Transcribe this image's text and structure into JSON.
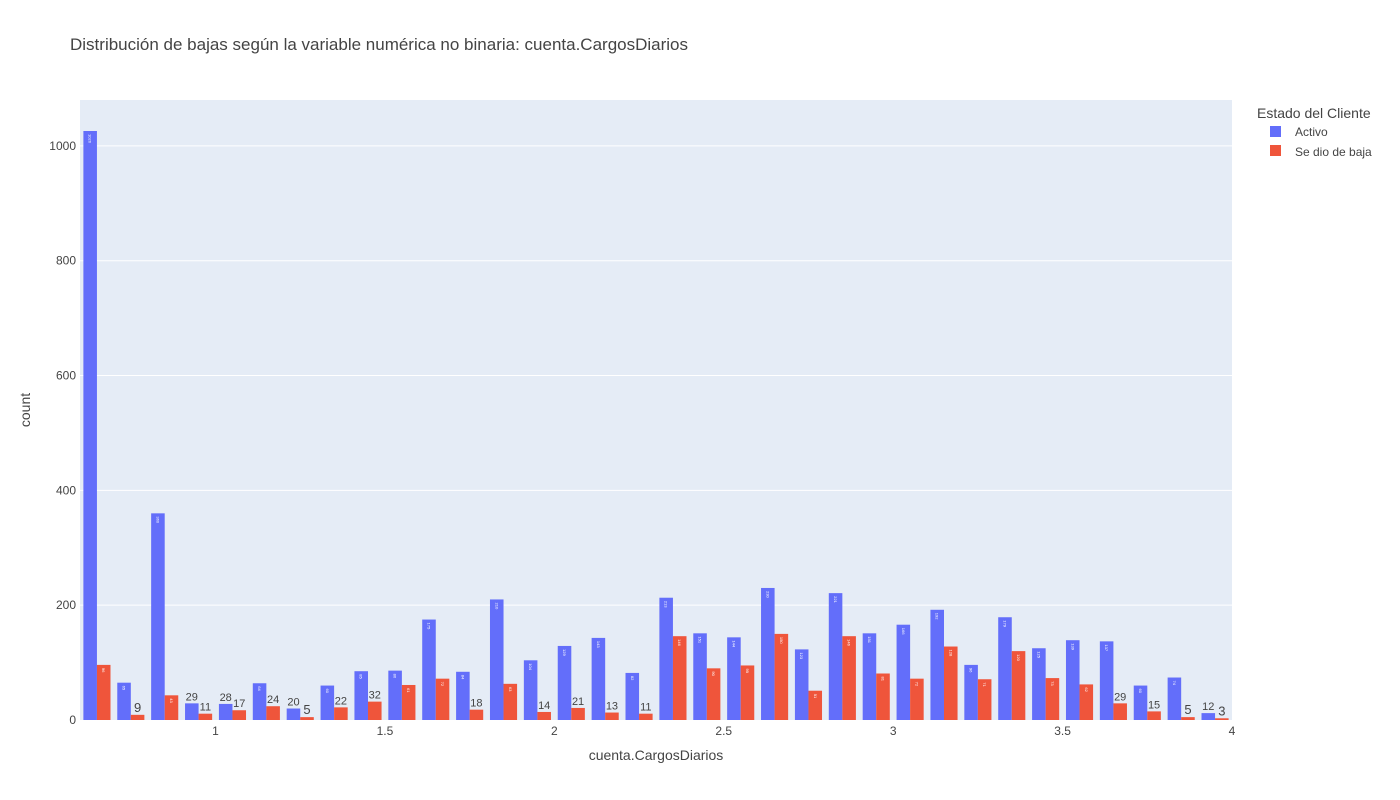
{
  "chart_data": {
    "type": "bar",
    "title": "Distribución de bajas según la variable numérica no binaria: cuenta.CargosDiarios",
    "xlabel": "cuenta.CargosDiarios",
    "ylabel": "count",
    "xlim": [
      0.6,
      4.0
    ],
    "ylim": [
      0,
      1080
    ],
    "bin_size": 0.1,
    "bin_start": 0.6,
    "x_ticks": [
      1,
      1.5,
      2,
      2.5,
      3,
      3.5,
      4
    ],
    "x_tick_labels": [
      "1",
      "1.5",
      "2",
      "2.5",
      "3",
      "3.5",
      "4"
    ],
    "y_ticks": [
      0,
      200,
      400,
      600,
      800,
      1000
    ],
    "y_tick_labels": [
      "0",
      "200",
      "400",
      "600",
      "800",
      "1000"
    ],
    "grid": true,
    "legend": {
      "title": "Estado del Cliente",
      "placement": "top-right"
    },
    "series": [
      {
        "name": "Activo",
        "color": "#636efa",
        "values": [
          1026,
          65,
          360,
          29,
          28,
          64,
          20,
          60,
          85,
          86,
          175,
          84,
          210,
          104,
          129,
          143,
          82,
          213,
          151,
          144,
          230,
          123,
          221,
          151,
          166,
          192,
          96,
          179,
          125,
          139,
          137,
          60,
          74,
          12
        ],
        "labels": [
          "1026",
          "65",
          "360",
          "29",
          "28",
          "64",
          "20",
          "60",
          "85",
          "86",
          "175",
          "84",
          "210",
          "104",
          "129",
          "143",
          "82",
          "213",
          "151",
          "144",
          "230",
          "123",
          "221",
          "151",
          "166",
          "192",
          "96",
          "179",
          "125",
          "139",
          "137",
          "60",
          "74",
          "12"
        ]
      },
      {
        "name": "Se dio de baja",
        "color": "#ef553b",
        "values": [
          96,
          9,
          43,
          11,
          17,
          24,
          5,
          22,
          32,
          61,
          72,
          18,
          63,
          14,
          21,
          13,
          11,
          146,
          90,
          95,
          150,
          51,
          146,
          81,
          72,
          128,
          71,
          120,
          73,
          62,
          29,
          15,
          5,
          3
        ],
        "labels": [
          "96",
          "9",
          "43",
          "11",
          "17",
          "24",
          "5",
          "22",
          "32",
          "61",
          "72",
          "18",
          "63",
          "14",
          "21",
          "13",
          "11",
          "146",
          "90",
          "95",
          "150",
          "51",
          "146",
          "81",
          "72",
          "128",
          "71",
          "120",
          "73",
          "62",
          "29",
          "15",
          "5",
          "3"
        ]
      }
    ]
  }
}
